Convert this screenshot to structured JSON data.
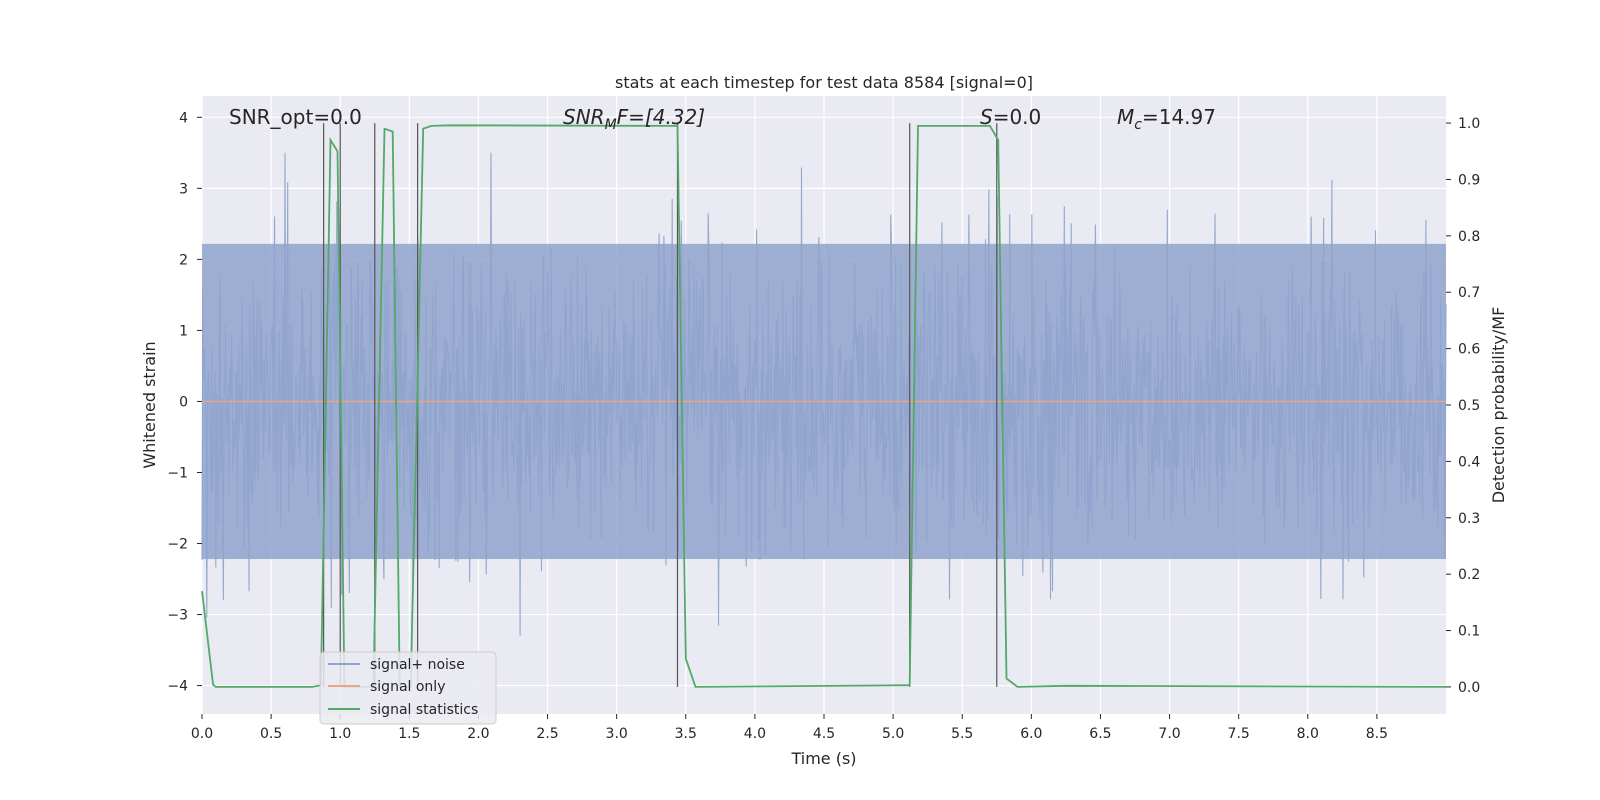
{
  "chart_data": {
    "type": "line",
    "title": "stats at each timestep for test data 8584 [signal=0]",
    "xlabel": "Time (s)",
    "ylabel": "Whitened strain",
    "y2label": "Detection probability/MF",
    "xlim": [
      0,
      9.0
    ],
    "ylim": [
      -4.4,
      4.3
    ],
    "y2lim": [
      -0.048,
      1.048
    ],
    "x_ticks": [
      "0.0",
      "0.5",
      "1.0",
      "1.5",
      "2.0",
      "2.5",
      "3.0",
      "3.5",
      "4.0",
      "4.5",
      "5.0",
      "5.5",
      "6.0",
      "6.5",
      "7.0",
      "7.5",
      "8.0",
      "8.5"
    ],
    "y_ticks": [
      4,
      3,
      2,
      1,
      0,
      -1,
      -2,
      -3,
      -4
    ],
    "y_tick_labels": [
      "4",
      "3",
      "2",
      "1",
      "0",
      "−1",
      "−2",
      "−3",
      "−4"
    ],
    "y2_ticks": [
      "1.0",
      "0.9",
      "0.8",
      "0.7",
      "0.6",
      "0.5",
      "0.4",
      "0.3",
      "0.2",
      "0.1",
      "0.0"
    ],
    "grid": true,
    "legend_position": "lower-left",
    "annotations": {
      "snr_opt": "SNR_opt=0.0",
      "snr_mf_base": "SNR",
      "snr_mf_sub": "M",
      "snr_mf_tail": "F=[4.32]",
      "s_base": "S",
      "s_tail": "=0.0",
      "mc_base": "M",
      "mc_sub": "c",
      "mc_tail": "=14.97"
    },
    "series": [
      {
        "name": "signal+ noise",
        "color": "#8fa3cc",
        "description": "white noise around 0 filling roughly -2.5 to +2.5 with spikes to about +/-3.5",
        "band": [
          -2.5,
          2.5
        ]
      },
      {
        "name": "signal only",
        "color": "#e8a583",
        "x": [
          0,
          9.0
        ],
        "y": [
          0,
          0
        ]
      },
      {
        "name": "signal statistics",
        "color": "#55a868",
        "axis": "right",
        "x": [
          0.0,
          0.08,
          0.1,
          0.3,
          0.8,
          0.86,
          0.93,
          0.98,
          1.03,
          1.1,
          1.24,
          1.32,
          1.38,
          1.43,
          1.51,
          1.6,
          1.66,
          1.8,
          3.44,
          3.5,
          3.57,
          5.12,
          5.18,
          5.22,
          5.7,
          5.76,
          5.82,
          5.9,
          6.25,
          9.0
        ],
        "y": [
          0.17,
          0.004,
          0.0,
          0.0,
          0.0,
          0.003,
          0.97,
          0.95,
          0.0,
          0.0,
          0.0,
          0.99,
          0.985,
          0.0,
          0.0,
          0.99,
          0.995,
          0.996,
          0.995,
          0.05,
          0.0,
          0.003,
          0.995,
          0.995,
          0.995,
          0.97,
          0.015,
          0.0,
          0.002,
          0.0
        ]
      }
    ],
    "vlines_x": [
      0.88,
      1.0,
      1.25,
      1.56,
      3.44,
      5.12,
      5.75
    ]
  },
  "legend": {
    "items": [
      {
        "label": "signal+ noise",
        "color": "#8fa3cc"
      },
      {
        "label": "signal only",
        "color": "#e8a583"
      },
      {
        "label": "signal statistics",
        "color": "#55a868"
      }
    ]
  }
}
